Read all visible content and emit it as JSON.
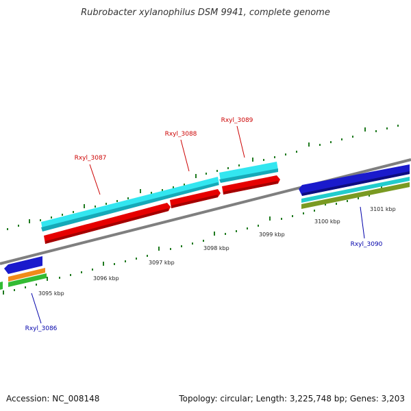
{
  "title": "Rubrobacter xylanophilus DSM 9941, complete genome",
  "footer": {
    "accession": "Accession: NC_008148",
    "summary": "Topology: circular; Length: 3,225,748 bp; Genes: 3,203"
  },
  "colors": {
    "backbone": "#7f7f7f",
    "tick": "#1f7a1f",
    "label_upper": "#cc0000",
    "label_lower": "#0000aa",
    "cyan": "#33e6f0",
    "red": "#e60000",
    "blue": "#1a1acc",
    "teal": "#22cccc",
    "olive": "#7a9a22",
    "orange": "#f08a1a",
    "green": "#33bb33"
  },
  "ticks": [
    "3095 kbp",
    "3096 kbp",
    "3097 kbp",
    "3098 kbp",
    "3099 kbp",
    "3100 kbp",
    "3101 kbp"
  ],
  "gene_labels": {
    "rxyl_3086": "Rxyl_3086",
    "rxyl_3087": "Rxyl_3087",
    "rxyl_3088": "Rxyl_3088",
    "rxyl_3089": "Rxyl_3089",
    "rxyl_3090": "Rxyl_3090"
  }
}
